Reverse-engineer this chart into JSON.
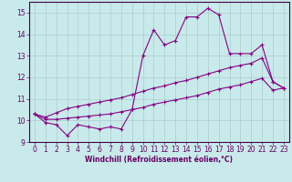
{
  "xlabel": "Windchill (Refroidissement éolien,°C)",
  "bg_color": "#c8eaea",
  "line_color": "#880088",
  "grid_color": "#aacccc",
  "x_values": [
    0,
    1,
    2,
    3,
    4,
    5,
    6,
    7,
    8,
    9,
    10,
    11,
    12,
    13,
    14,
    15,
    16,
    17,
    18,
    19,
    20,
    21,
    22,
    23
  ],
  "line1": [
    10.3,
    9.9,
    9.8,
    9.3,
    9.8,
    9.7,
    9.6,
    9.7,
    9.6,
    10.5,
    13.0,
    14.2,
    13.5,
    13.7,
    14.8,
    14.8,
    15.2,
    14.9,
    13.1,
    13.1,
    13.1,
    13.5,
    11.8,
    11.5
  ],
  "line2": [
    10.3,
    10.15,
    10.35,
    10.55,
    10.65,
    10.75,
    10.85,
    10.95,
    11.05,
    11.2,
    11.35,
    11.5,
    11.6,
    11.75,
    11.85,
    12.0,
    12.15,
    12.3,
    12.45,
    12.55,
    12.65,
    12.9,
    11.8,
    11.5
  ],
  "line3": [
    10.3,
    10.05,
    10.05,
    10.1,
    10.15,
    10.2,
    10.25,
    10.3,
    10.4,
    10.5,
    10.6,
    10.75,
    10.85,
    10.95,
    11.05,
    11.15,
    11.3,
    11.45,
    11.55,
    11.65,
    11.8,
    11.95,
    11.4,
    11.5
  ],
  "ylim": [
    9.0,
    15.5
  ],
  "xlim_min": -0.5,
  "xlim_max": 23.5,
  "yticks": [
    9,
    10,
    11,
    12,
    13,
    14,
    15
  ],
  "xticks": [
    0,
    1,
    2,
    3,
    4,
    5,
    6,
    7,
    8,
    9,
    10,
    11,
    12,
    13,
    14,
    15,
    16,
    17,
    18,
    19,
    20,
    21,
    22,
    23
  ],
  "tick_fontsize": 5.5,
  "xlabel_fontsize": 5.5,
  "lw": 0.8,
  "marker_size": 3,
  "spine_color": "#440044",
  "tick_color": "#660066",
  "label_color": "#660066"
}
